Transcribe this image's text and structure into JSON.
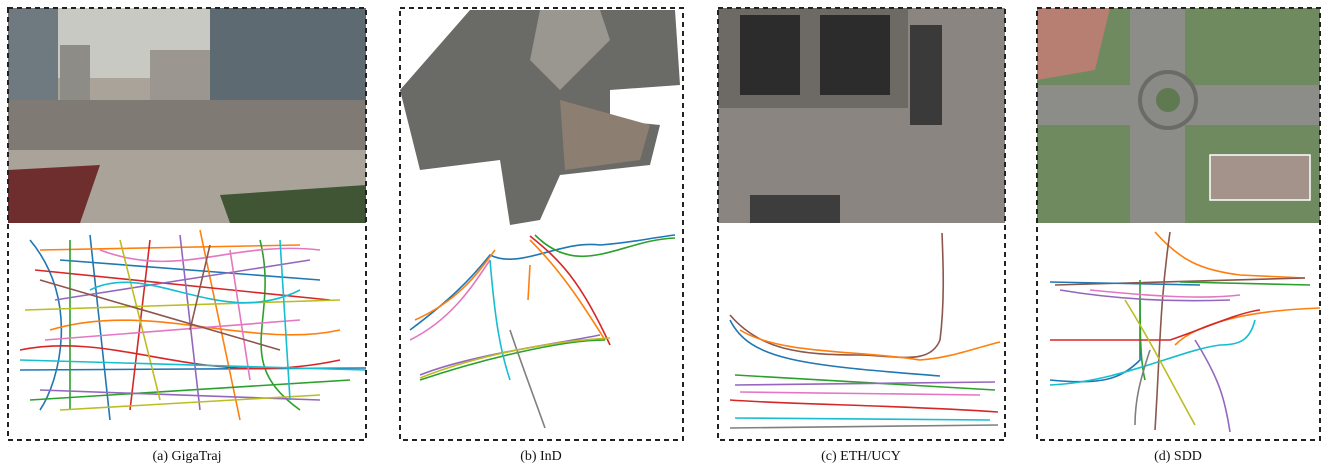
{
  "panels": [
    {
      "caption": "(a) GigaTraj"
    },
    {
      "caption": "(b) InD"
    },
    {
      "caption": "(c) ETH/UCY"
    },
    {
      "caption": "(d) SDD"
    }
  ]
}
